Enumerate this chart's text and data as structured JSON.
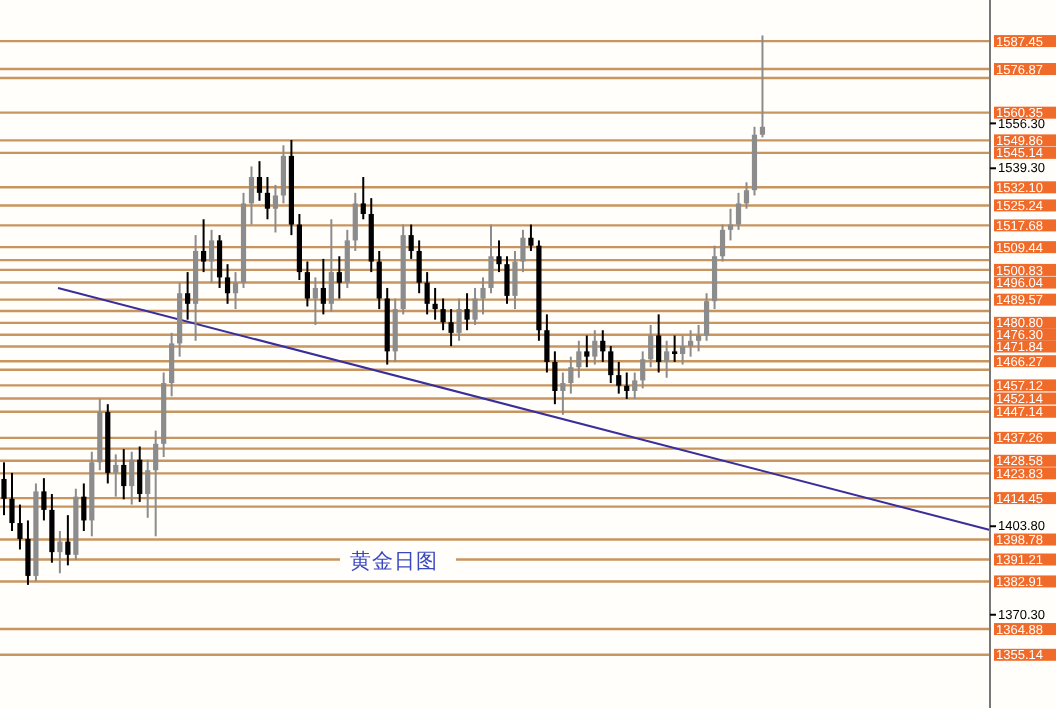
{
  "chart_data": {
    "type": "candlestick",
    "annotations": [
      "黄金日图"
    ],
    "categories": [
      null,
      null,
      null,
      null,
      null,
      null,
      null,
      null,
      null,
      null,
      null,
      null,
      null,
      null,
      null,
      null,
      null,
      null,
      null,
      null,
      null,
      null,
      null,
      null,
      null,
      null,
      null,
      null,
      null,
      null,
      null,
      null,
      null,
      null,
      null,
      null,
      null,
      null,
      null,
      null,
      null,
      null,
      null,
      null,
      null,
      null,
      null,
      null,
      null,
      null,
      null,
      null,
      null,
      null,
      null,
      null,
      null,
      null,
      null,
      null,
      null,
      null,
      null,
      null,
      null,
      null,
      null,
      null,
      null,
      null,
      null,
      null,
      null,
      null,
      null,
      null,
      null,
      null,
      null,
      null,
      null,
      null,
      null,
      null,
      null,
      null,
      null,
      null,
      null,
      null,
      null,
      null,
      null,
      null,
      null,
      null,
      null,
      null,
      null,
      null,
      null,
      null,
      null,
      null,
      null,
      null,
      null,
      null,
      null,
      null,
      null,
      null,
      null,
      null,
      null,
      null,
      null,
      null,
      null,
      null,
      null,
      null,
      null,
      null
    ],
    "ohlc": [
      [
        1421.7,
        1428,
        1408,
        1414.2
      ],
      [
        1414.2,
        1424,
        1402,
        1405
      ],
      [
        1405,
        1412,
        1395,
        1399
      ],
      [
        1399,
        1406,
        1381.6,
        1385
      ],
      [
        1385,
        1420,
        1383,
        1417
      ],
      [
        1417,
        1422,
        1406,
        1410
      ],
      [
        1410,
        1416,
        1390,
        1394
      ],
      [
        1394,
        1402,
        1386,
        1398
      ],
      [
        1398,
        1408,
        1389,
        1393
      ],
      [
        1393,
        1418,
        1391,
        1415
      ],
      [
        1415,
        1420,
        1402,
        1406
      ],
      [
        1406,
        1432,
        1400,
        1428
      ],
      [
        1428,
        1452,
        1425,
        1447
      ],
      [
        1447,
        1450,
        1420,
        1424
      ],
      [
        1424,
        1431,
        1415,
        1427
      ],
      [
        1427,
        1433,
        1414,
        1419
      ],
      [
        1419,
        1432,
        1412,
        1429
      ],
      [
        1429,
        1434,
        1413,
        1416
      ],
      [
        1416,
        1429,
        1407,
        1425
      ],
      [
        1425,
        1440,
        1400,
        1435
      ],
      [
        1435,
        1462,
        1430,
        1458
      ],
      [
        1458,
        1477,
        1453,
        1473
      ],
      [
        1473,
        1496,
        1468,
        1492
      ],
      [
        1492,
        1500,
        1482,
        1488
      ],
      [
        1488,
        1514,
        1474,
        1508
      ],
      [
        1508,
        1520,
        1500,
        1504
      ],
      [
        1504,
        1516,
        1496,
        1512
      ],
      [
        1512,
        1514,
        1494,
        1498
      ],
      [
        1498,
        1503,
        1488,
        1492
      ],
      [
        1492,
        1500,
        1486,
        1496
      ],
      [
        1496,
        1530,
        1494,
        1526
      ],
      [
        1526,
        1540,
        1518,
        1536
      ],
      [
        1536,
        1542,
        1527,
        1530
      ],
      [
        1530,
        1536,
        1520,
        1524
      ],
      [
        1524,
        1533,
        1515,
        1529
      ],
      [
        1529,
        1548,
        1526,
        1544
      ],
      [
        1544,
        1550,
        1514,
        1518
      ],
      [
        1518,
        1522,
        1497,
        1500
      ],
      [
        1500,
        1504,
        1487,
        1490
      ],
      [
        1490,
        1498,
        1480,
        1494
      ],
      [
        1494,
        1505,
        1484,
        1488
      ],
      [
        1488,
        1520,
        1485,
        1500
      ],
      [
        1500,
        1506,
        1490,
        1496
      ],
      [
        1496,
        1516,
        1494,
        1512
      ],
      [
        1512,
        1530,
        1508,
        1526
      ],
      [
        1526,
        1536,
        1520,
        1522
      ],
      [
        1522,
        1528,
        1500,
        1504
      ],
      [
        1504,
        1508,
        1486,
        1490
      ],
      [
        1490,
        1494,
        1465,
        1470
      ],
      [
        1470,
        1490,
        1466,
        1486
      ],
      [
        1486,
        1518,
        1484,
        1514
      ],
      [
        1514,
        1518,
        1505,
        1508
      ],
      [
        1508,
        1512,
        1492,
        1496
      ],
      [
        1496,
        1500,
        1484,
        1488
      ],
      [
        1488,
        1494,
        1482,
        1486
      ],
      [
        1486,
        1490,
        1478,
        1481
      ],
      [
        1481,
        1486,
        1472,
        1477
      ],
      [
        1477,
        1490,
        1474,
        1486
      ],
      [
        1486,
        1492,
        1478,
        1482
      ],
      [
        1482,
        1494,
        1480,
        1490
      ],
      [
        1490,
        1498,
        1484,
        1494
      ],
      [
        1494,
        1518,
        1492,
        1506
      ],
      [
        1506,
        1512,
        1500,
        1503
      ],
      [
        1503,
        1506,
        1488,
        1491
      ],
      [
        1491,
        1508,
        1486,
        1504
      ],
      [
        1504,
        1516,
        1500,
        1513
      ],
      [
        1513,
        1518,
        1508,
        1510
      ],
      [
        1510,
        1512,
        1474,
        1478
      ],
      [
        1478,
        1484,
        1462,
        1466
      ],
      [
        1466,
        1470,
        1450,
        1455
      ],
      [
        1455,
        1462,
        1446,
        1458
      ],
      [
        1458,
        1468,
        1454,
        1464
      ],
      [
        1464,
        1474,
        1460,
        1470
      ],
      [
        1470,
        1476,
        1464,
        1468
      ],
      [
        1468,
        1478,
        1465,
        1474
      ],
      [
        1474,
        1478,
        1466,
        1470
      ],
      [
        1470,
        1472,
        1458,
        1461
      ],
      [
        1461,
        1466,
        1454,
        1457
      ],
      [
        1457,
        1462,
        1452,
        1455
      ],
      [
        1455,
        1462,
        1452,
        1459
      ],
      [
        1459,
        1470,
        1456,
        1467
      ],
      [
        1467,
        1480,
        1464,
        1476
      ],
      [
        1476,
        1484,
        1462,
        1466
      ],
      [
        1466,
        1474,
        1460,
        1470
      ],
      [
        1470,
        1476,
        1466,
        1469
      ],
      [
        1469,
        1476,
        1465,
        1472
      ],
      [
        1472,
        1478,
        1468,
        1474
      ],
      [
        1474,
        1480,
        1470,
        1476
      ],
      [
        1476,
        1492,
        1474,
        1489
      ],
      [
        1489,
        1510,
        1486,
        1506
      ],
      [
        1506,
        1518,
        1504,
        1516
      ],
      [
        1516,
        1524,
        1512,
        1518
      ],
      [
        1518,
        1530,
        1516,
        1526
      ],
      [
        1526,
        1534,
        1524,
        1531
      ],
      [
        1531,
        1555,
        1529,
        1552
      ],
      [
        1552,
        1589.6,
        1551,
        1555
      ],
      null,
      null,
      null,
      null,
      null,
      null,
      null,
      null,
      null,
      null,
      null,
      null,
      null,
      null,
      null,
      null,
      null,
      null,
      null,
      null,
      null,
      null,
      null,
      null,
      null,
      null,
      null,
      null
    ],
    "colors": [
      "#000000",
      "#000000",
      "#000000",
      "#000000",
      "#8c8c8c",
      "#000000",
      "#000000",
      "#8c8c8c",
      "#000000",
      "#8c8c8c",
      "#000000",
      "#8c8c8c",
      "#8c8c8c",
      "#000000",
      "#8c8c8c",
      "#000000",
      "#8c8c8c",
      "#000000",
      "#8c8c8c",
      "#8c8c8c",
      "#8c8c8c",
      "#8c8c8c",
      "#8c8c8c",
      "#000000",
      "#8c8c8c",
      "#000000",
      "#8c8c8c",
      "#000000",
      "#000000",
      "#8c8c8c",
      "#8c8c8c",
      "#8c8c8c",
      "#000000",
      "#000000",
      "#8c8c8c",
      "#8c8c8c",
      "#000000",
      "#000000",
      "#000000",
      "#8c8c8c",
      "#000000",
      "#8c8c8c",
      "#000000",
      "#8c8c8c",
      "#8c8c8c",
      "#000000",
      "#000000",
      "#000000",
      "#000000",
      "#8c8c8c",
      "#8c8c8c",
      "#000000",
      "#000000",
      "#000000",
      "#000000",
      "#000000",
      "#000000",
      "#8c8c8c",
      "#000000",
      "#8c8c8c",
      "#8c8c8c",
      "#8c8c8c",
      "#000000",
      "#000000",
      "#8c8c8c",
      "#8c8c8c",
      "#000000",
      "#000000",
      "#000000",
      "#000000",
      "#8c8c8c",
      "#8c8c8c",
      "#8c8c8c",
      "#000000",
      "#8c8c8c",
      "#000000",
      "#000000",
      "#000000",
      "#000000",
      "#8c8c8c",
      "#8c8c8c",
      "#8c8c8c",
      "#000000",
      "#8c8c8c",
      "#000000",
      "#8c8c8c",
      "#8c8c8c",
      "#8c8c8c",
      "#8c8c8c",
      "#8c8c8c",
      "#8c8c8c",
      "#8c8c8c",
      "#8c8c8c",
      "#8c8c8c",
      "#8c8c8c",
      "#8c8c8c",
      null,
      null,
      null,
      null,
      null,
      null,
      null,
      null,
      null,
      null,
      null,
      null,
      null,
      null,
      null,
      null,
      null,
      null,
      null,
      null,
      null,
      null,
      null,
      null,
      null,
      null,
      null,
      null
    ],
    "ylim": [
      1335,
      1603
    ],
    "yticks": [
      {
        "value": 1556.3,
        "label": "1556.30"
      },
      {
        "value": 1539.3,
        "label": "1539.30"
      },
      {
        "value": 1403.8,
        "label": "1403.80"
      },
      {
        "value": 1370.3,
        "label": "1370.30"
      }
    ],
    "tick_labels": "y",
    "ref_lines": [
      {
        "axis": "y",
        "value": 1587.45,
        "label": "1587.45",
        "color": "#c8955f"
      },
      {
        "axis": "y",
        "value": 1576.87,
        "label": "1576.87",
        "color": "#c8955f"
      },
      {
        "axis": "y",
        "value": 1573.5,
        "label": null,
        "color": "#c8955f"
      },
      {
        "axis": "y",
        "value": 1560.35,
        "label": "1560.35",
        "color": "#c8955f"
      },
      {
        "axis": "y",
        "value": 1549.86,
        "label": "1549.86",
        "color": "#c8955f"
      },
      {
        "axis": "y",
        "value": 1545.14,
        "label": "1545.14",
        "color": "#c8955f"
      },
      {
        "axis": "y",
        "value": 1532.1,
        "label": "1532.10",
        "color": "#c8955f"
      },
      {
        "axis": "y",
        "value": 1525.24,
        "label": "1525.24",
        "color": "#c8955f"
      },
      {
        "axis": "y",
        "value": 1517.68,
        "label": "1517.68",
        "color": "#c8955f"
      },
      {
        "axis": "y",
        "value": 1509.44,
        "label": "1509.44",
        "color": "#c8955f"
      },
      {
        "axis": "y",
        "value": 1504.54,
        "label": null,
        "color": "#c8955f"
      },
      {
        "axis": "y",
        "value": 1500.83,
        "label": "1500.83",
        "color": "#c8955f"
      },
      {
        "axis": "y",
        "value": 1496.04,
        "label": "1496.04",
        "color": "#c8955f"
      },
      {
        "axis": "y",
        "value": 1489.57,
        "label": "1489.57",
        "color": "#c8955f"
      },
      {
        "axis": "y",
        "value": 1485.3,
        "label": null,
        "color": "#c8955f"
      },
      {
        "axis": "y",
        "value": 1480.8,
        "label": "1480.80",
        "color": "#c8955f"
      },
      {
        "axis": "y",
        "value": 1476.3,
        "label": "1476.30",
        "color": "#c8955f"
      },
      {
        "axis": "y",
        "value": 1471.84,
        "label": "1471.84",
        "color": "#c8955f"
      },
      {
        "axis": "y",
        "value": 1466.27,
        "label": "1466.27",
        "color": "#c8955f"
      },
      {
        "axis": "y",
        "value": 1463.04,
        "label": null,
        "color": "#c8955f"
      },
      {
        "axis": "y",
        "value": 1457.12,
        "label": "1457.12",
        "color": "#c8955f"
      },
      {
        "axis": "y",
        "value": 1452.14,
        "label": "1452.14",
        "color": "#c8955f"
      },
      {
        "axis": "y",
        "value": 1447.14,
        "label": "1447.14",
        "color": "#c8955f"
      },
      {
        "axis": "y",
        "value": 1437.26,
        "label": "1437.26",
        "color": "#c8955f"
      },
      {
        "axis": "y",
        "value": 1433.17,
        "label": null,
        "color": "#c8955f"
      },
      {
        "axis": "y",
        "value": 1428.58,
        "label": "1428.58",
        "color": "#c8955f"
      },
      {
        "axis": "y",
        "value": 1423.83,
        "label": "1423.83",
        "color": "#c8955f"
      },
      {
        "axis": "y",
        "value": 1414.45,
        "label": "1414.45",
        "color": "#c8955f"
      },
      {
        "axis": "y",
        "value": 1411.22,
        "label": null,
        "color": "#c8955f"
      },
      {
        "axis": "y",
        "value": 1398.78,
        "label": "1398.78",
        "color": "#c8955f"
      },
      {
        "axis": "y",
        "value": 1391.21,
        "label": "1391.21",
        "color": "#c8955f"
      },
      {
        "axis": "y",
        "value": 1382.91,
        "label": "1382.91",
        "color": "#c8955f"
      },
      {
        "axis": "y",
        "value": 1364.88,
        "label": "1364.88",
        "color": "#c8955f"
      },
      {
        "axis": "y",
        "value": 1355.14,
        "label": "1355.14",
        "color": "#c8955f"
      }
    ]
  }
}
